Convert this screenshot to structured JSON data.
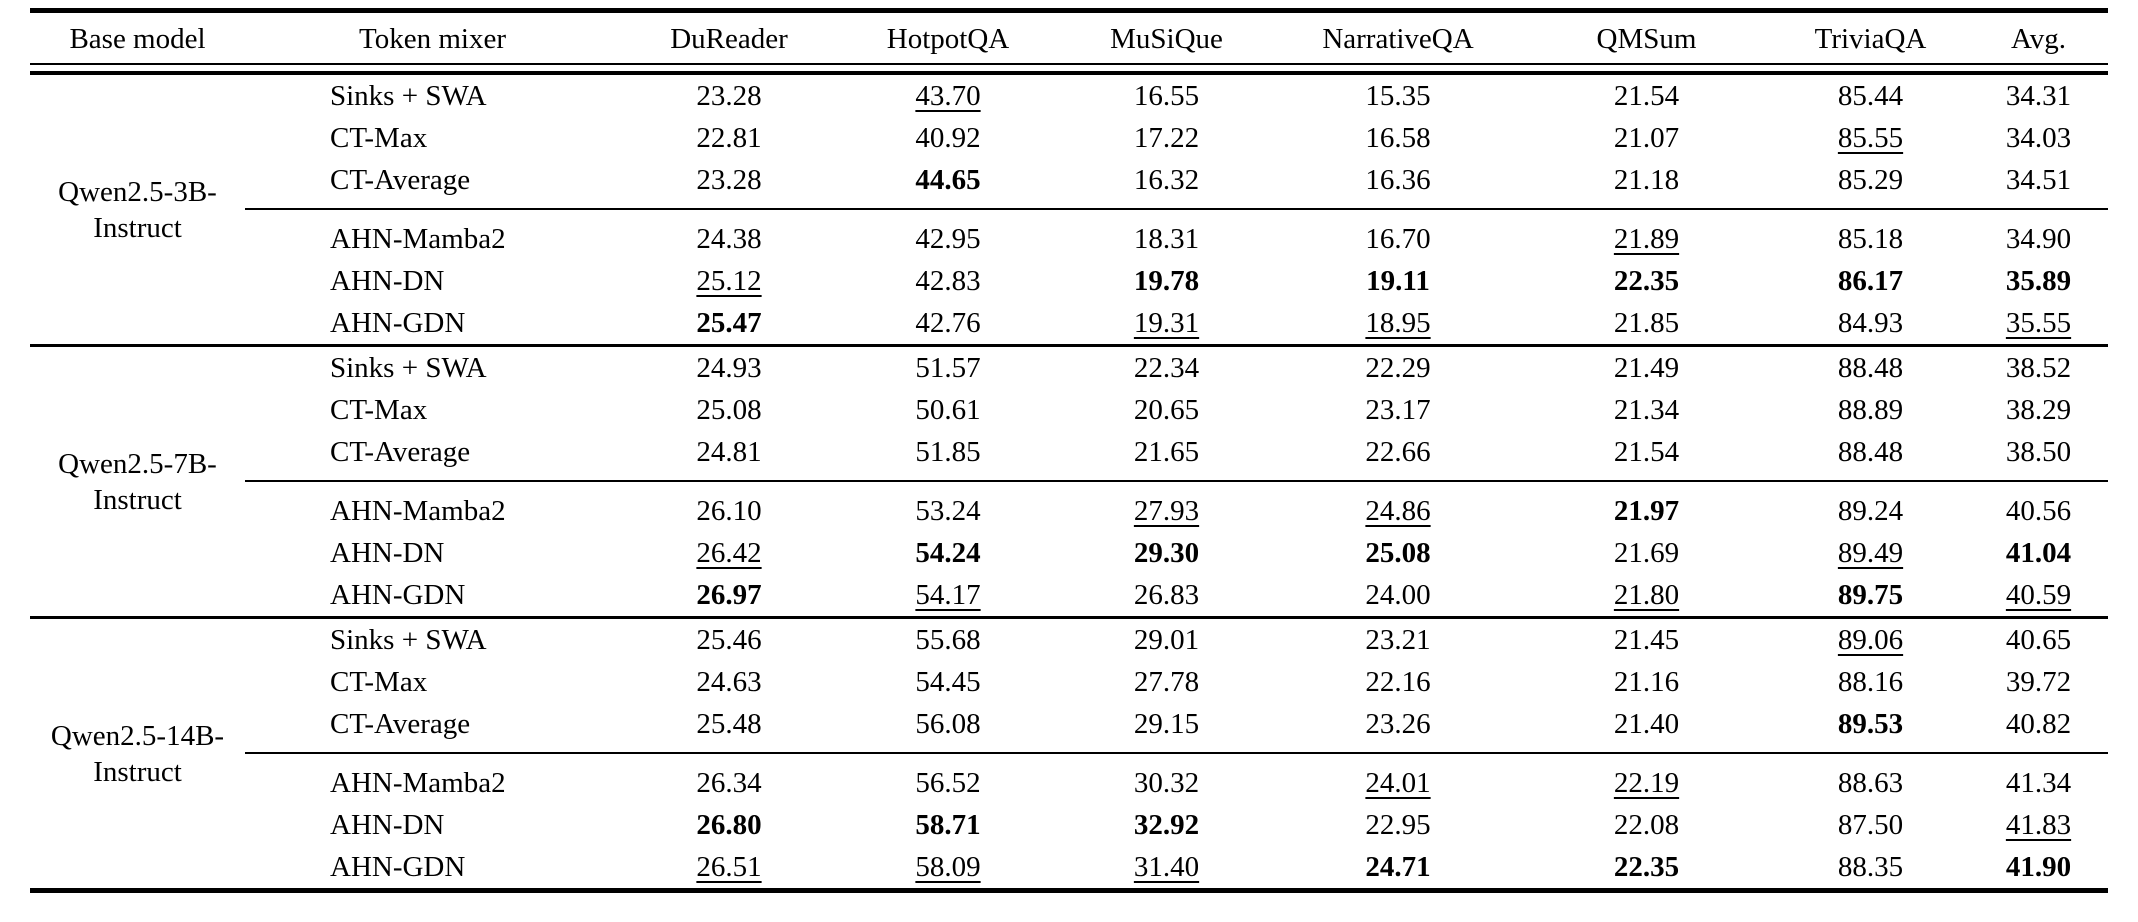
{
  "table": {
    "columns": [
      "Base model",
      "Token mixer",
      "DuReader",
      "HotpotQA",
      "MuSiQue",
      "NarrativeQA",
      "QMSum",
      "TriviaQA",
      "Avg."
    ],
    "emphasis_legend": {
      "b": "bold (best)",
      "u": "underline (second best)"
    },
    "text_color": "#000000",
    "rule_color": "#000000",
    "groups": [
      {
        "base_model": "Qwen2.5-3B-Instruct",
        "base_model_lines": [
          "Qwen2.5-3B-",
          "Instruct"
        ],
        "rows": [
          {
            "mixer": "Sinks + SWA",
            "values": [
              "23.28",
              "43.70",
              "16.55",
              "15.35",
              "21.54",
              "85.44",
              "34.31"
            ],
            "formats": [
              "",
              "u",
              "",
              "",
              "",
              "",
              ""
            ]
          },
          {
            "mixer": "CT-Max",
            "values": [
              "22.81",
              "40.92",
              "17.22",
              "16.58",
              "21.07",
              "85.55",
              "34.03"
            ],
            "formats": [
              "",
              "",
              "",
              "",
              "",
              "u",
              ""
            ]
          },
          {
            "mixer": "CT-Average",
            "values": [
              "23.28",
              "44.65",
              "16.32",
              "16.36",
              "21.18",
              "85.29",
              "34.51"
            ],
            "formats": [
              "",
              "b",
              "",
              "",
              "",
              "",
              ""
            ]
          },
          {
            "mixer": "AHN-Mamba2",
            "values": [
              "24.38",
              "42.95",
              "18.31",
              "16.70",
              "21.89",
              "85.18",
              "34.90"
            ],
            "formats": [
              "",
              "",
              "",
              "",
              "u",
              "",
              ""
            ]
          },
          {
            "mixer": "AHN-DN",
            "values": [
              "25.12",
              "42.83",
              "19.78",
              "19.11",
              "22.35",
              "86.17",
              "35.89"
            ],
            "formats": [
              "u",
              "",
              "b",
              "b",
              "b",
              "b",
              "b"
            ]
          },
          {
            "mixer": "AHN-GDN",
            "values": [
              "25.47",
              "42.76",
              "19.31",
              "18.95",
              "21.85",
              "84.93",
              "35.55"
            ],
            "formats": [
              "b",
              "",
              "u",
              "u",
              "",
              "",
              "u"
            ]
          }
        ]
      },
      {
        "base_model": "Qwen2.5-7B-Instruct",
        "base_model_lines": [
          "Qwen2.5-7B-",
          "Instruct"
        ],
        "rows": [
          {
            "mixer": "Sinks + SWA",
            "values": [
              "24.93",
              "51.57",
              "22.34",
              "22.29",
              "21.49",
              "88.48",
              "38.52"
            ],
            "formats": [
              "",
              "",
              "",
              "",
              "",
              "",
              ""
            ]
          },
          {
            "mixer": "CT-Max",
            "values": [
              "25.08",
              "50.61",
              "20.65",
              "23.17",
              "21.34",
              "88.89",
              "38.29"
            ],
            "formats": [
              "",
              "",
              "",
              "",
              "",
              "",
              ""
            ]
          },
          {
            "mixer": "CT-Average",
            "values": [
              "24.81",
              "51.85",
              "21.65",
              "22.66",
              "21.54",
              "88.48",
              "38.50"
            ],
            "formats": [
              "",
              "",
              "",
              "",
              "",
              "",
              ""
            ]
          },
          {
            "mixer": "AHN-Mamba2",
            "values": [
              "26.10",
              "53.24",
              "27.93",
              "24.86",
              "21.97",
              "89.24",
              "40.56"
            ],
            "formats": [
              "",
              "",
              "u",
              "u",
              "b",
              "",
              ""
            ]
          },
          {
            "mixer": "AHN-DN",
            "values": [
              "26.42",
              "54.24",
              "29.30",
              "25.08",
              "21.69",
              "89.49",
              "41.04"
            ],
            "formats": [
              "u",
              "b",
              "b",
              "b",
              "",
              "u",
              "b"
            ]
          },
          {
            "mixer": "AHN-GDN",
            "values": [
              "26.97",
              "54.17",
              "26.83",
              "24.00",
              "21.80",
              "89.75",
              "40.59"
            ],
            "formats": [
              "b",
              "u",
              "",
              "",
              "u",
              "b",
              "u"
            ]
          }
        ]
      },
      {
        "base_model": "Qwen2.5-14B-Instruct",
        "base_model_lines": [
          "Qwen2.5-14B-",
          "Instruct"
        ],
        "rows": [
          {
            "mixer": "Sinks + SWA",
            "values": [
              "25.46",
              "55.68",
              "29.01",
              "23.21",
              "21.45",
              "89.06",
              "40.65"
            ],
            "formats": [
              "",
              "",
              "",
              "",
              "",
              "u",
              ""
            ]
          },
          {
            "mixer": "CT-Max",
            "values": [
              "24.63",
              "54.45",
              "27.78",
              "22.16",
              "21.16",
              "88.16",
              "39.72"
            ],
            "formats": [
              "",
              "",
              "",
              "",
              "",
              "",
              ""
            ]
          },
          {
            "mixer": "CT-Average",
            "values": [
              "25.48",
              "56.08",
              "29.15",
              "23.26",
              "21.40",
              "89.53",
              "40.82"
            ],
            "formats": [
              "",
              "",
              "",
              "",
              "",
              "b",
              ""
            ]
          },
          {
            "mixer": "AHN-Mamba2",
            "values": [
              "26.34",
              "56.52",
              "30.32",
              "24.01",
              "22.19",
              "88.63",
              "41.34"
            ],
            "formats": [
              "",
              "",
              "",
              "u",
              "u",
              "",
              ""
            ]
          },
          {
            "mixer": "AHN-DN",
            "values": [
              "26.80",
              "58.71",
              "32.92",
              "22.95",
              "22.08",
              "87.50",
              "41.83"
            ],
            "formats": [
              "b",
              "b",
              "b",
              "",
              "",
              "",
              "u"
            ]
          },
          {
            "mixer": "AHN-GDN",
            "values": [
              "26.51",
              "58.09",
              "31.40",
              "24.71",
              "22.35",
              "88.35",
              "41.90"
            ],
            "formats": [
              "u",
              "u",
              "u",
              "b",
              "b",
              "",
              "b"
            ]
          }
        ]
      }
    ]
  }
}
